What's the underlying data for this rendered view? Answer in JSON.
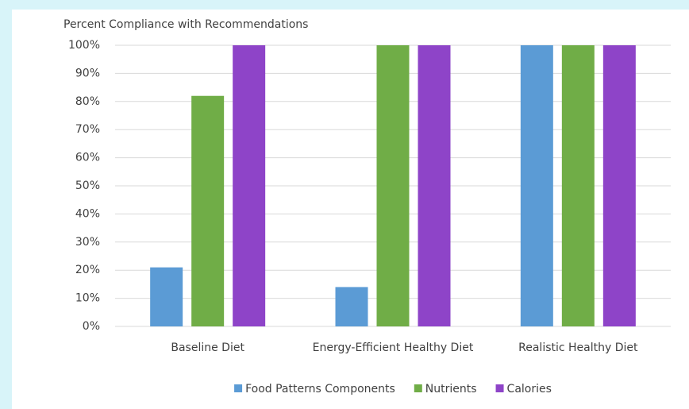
{
  "chart_data": {
    "type": "bar",
    "title": "Percent Compliance with Recommendations",
    "categories": [
      "Baseline Diet",
      "Energy-Efficient Healthy Diet",
      "Realistic Healthy Diet"
    ],
    "series": [
      {
        "name": "Food Patterns Components",
        "color": "#5b9bd5",
        "values": [
          21,
          14,
          100
        ]
      },
      {
        "name": "Nutrients",
        "color": "#70ad47",
        "values": [
          82,
          100,
          100
        ]
      },
      {
        "name": "Calories",
        "color": "#8e44c8",
        "values": [
          100,
          100,
          100
        ]
      }
    ],
    "ylim": [
      0,
      100
    ],
    "yticks": [
      {
        "value": 0,
        "label": "0%"
      },
      {
        "value": 10,
        "label": "10%"
      },
      {
        "value": 20,
        "label": "20%"
      },
      {
        "value": 30,
        "label": "30%"
      },
      {
        "value": 40,
        "label": "40%"
      },
      {
        "value": 50,
        "label": "50%"
      },
      {
        "value": 60,
        "label": "60%"
      },
      {
        "value": 70,
        "label": "70%"
      },
      {
        "value": 80,
        "label": "80%"
      },
      {
        "value": 90,
        "label": "90%"
      },
      {
        "value": 100,
        "label": "100%"
      }
    ],
    "grid": true,
    "legend": "bottom"
  }
}
